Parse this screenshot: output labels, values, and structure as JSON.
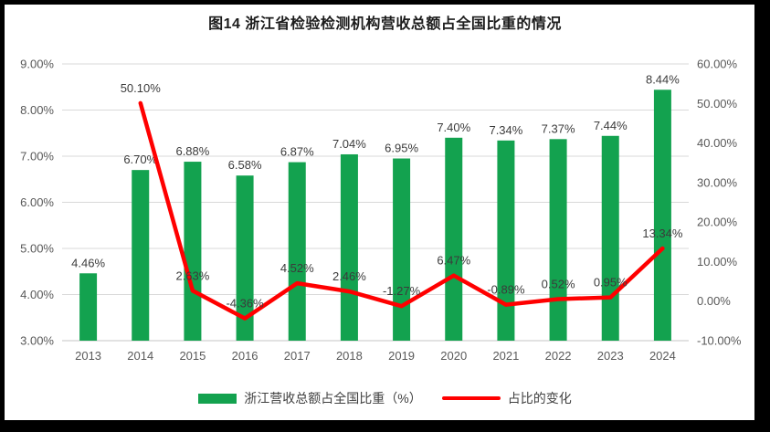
{
  "title": "图14  浙江省检验检测机构营收总额占全国比重的情况",
  "legend": {
    "bar_label": "浙江营收总额占全国比重（%）",
    "line_label": "占比的变化"
  },
  "colors": {
    "bar": "#13A24F",
    "line": "#FF0000",
    "grid": "#D9D9D9",
    "baseline": "#C6C6C6",
    "axis_text": "#595959",
    "data_label_text": "#3B3B3B",
    "title_text": "#1C1C1C",
    "frame": "#000000",
    "background": "#FFFFFF"
  },
  "chart_data": {
    "type": "combo: bar + line",
    "title": "图14  浙江省检验检测机构营收总额占全国比重的情况",
    "categories": [
      "2013",
      "2014",
      "2015",
      "2016",
      "2017",
      "2018",
      "2019",
      "2020",
      "2021",
      "2022",
      "2023",
      "2024"
    ],
    "series": [
      {
        "name": "浙江营收总额占全国比重（%）",
        "type": "bar",
        "axis": "left",
        "values": [
          4.46,
          6.7,
          6.88,
          6.58,
          6.87,
          7.04,
          6.95,
          7.4,
          7.34,
          7.37,
          7.44,
          8.44
        ],
        "labels": [
          "4.46%",
          "6.70%",
          "6.88%",
          "6.58%",
          "6.87%",
          "7.04%",
          "6.95%",
          "7.40%",
          "7.34%",
          "7.37%",
          "7.44%",
          "8.44%"
        ]
      },
      {
        "name": "占比的变化",
        "type": "line",
        "axis": "right",
        "values": [
          null,
          50.1,
          2.63,
          -4.36,
          4.52,
          2.46,
          -1.27,
          6.47,
          -0.89,
          0.52,
          0.95,
          13.34
        ],
        "labels": [
          null,
          "50.10%",
          "2.63%",
          "-4.36%",
          "4.52%",
          "2.46%",
          "-1.27%",
          "6.47%",
          "-0.89%",
          "0.52%",
          "0.95%",
          "13.34%"
        ]
      }
    ],
    "left_axis": {
      "min": 3,
      "max": 9,
      "ticks": [
        {
          "value": 9,
          "label": "9.00%"
        },
        {
          "value": 8,
          "label": "8.00%"
        },
        {
          "value": 7,
          "label": "7.00%"
        },
        {
          "value": 6,
          "label": "6.00%"
        },
        {
          "value": 5,
          "label": "5.00%"
        },
        {
          "value": 4,
          "label": "4.00%"
        },
        {
          "value": 3,
          "label": "3.00%"
        }
      ]
    },
    "right_axis": {
      "min": -10,
      "max": 60,
      "ticks": [
        {
          "value": 60,
          "label": "60.00%"
        },
        {
          "value": 50,
          "label": "50.00%"
        },
        {
          "value": 40,
          "label": "40.00%"
        },
        {
          "value": 30,
          "label": "30.00%"
        },
        {
          "value": 20,
          "label": "20.00%"
        },
        {
          "value": 10,
          "label": "10.00%"
        },
        {
          "value": 0,
          "label": "0.00%"
        },
        {
          "value": -10,
          "label": "-10.00%"
        }
      ]
    },
    "grid": true,
    "legend_position": "bottom"
  }
}
